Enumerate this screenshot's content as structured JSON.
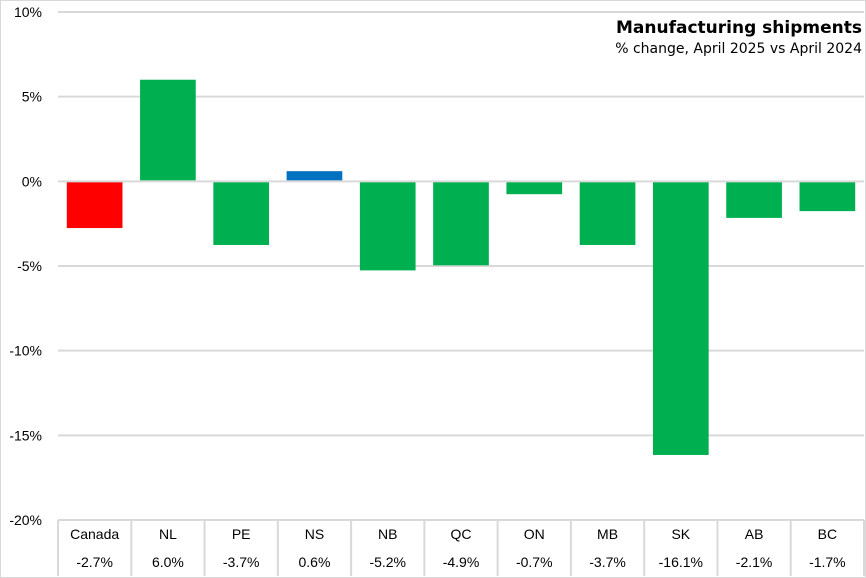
{
  "chart_data": {
    "type": "bar",
    "title": "Manufacturing shipments",
    "subtitle": "% change, April 2025 vs April 2024",
    "xlabel": "",
    "ylabel": "",
    "ylim": [
      -20,
      10
    ],
    "yticks": [
      10,
      5,
      0,
      -5,
      -10,
      -15,
      -20
    ],
    "ytick_labels": [
      "10%",
      "5%",
      "0%",
      "-5%",
      "-10%",
      "-15%",
      "-20%"
    ],
    "grid": true,
    "legend": "none",
    "categories": [
      "Canada",
      "NL",
      "PE",
      "NS",
      "NB",
      "QC",
      "ON",
      "MB",
      "SK",
      "AB",
      "BC"
    ],
    "values": [
      -2.7,
      6.0,
      -3.7,
      0.6,
      -5.2,
      -4.9,
      -0.7,
      -3.7,
      -16.1,
      -2.1,
      -1.7
    ],
    "value_labels": [
      "-2.7%",
      "6.0%",
      "-3.7%",
      "0.6%",
      "-5.2%",
      "-4.9%",
      "-0.7%",
      "-3.7%",
      "-16.1%",
      "-2.1%",
      "-1.7%"
    ],
    "bar_colors": [
      "#ff0000",
      "#00b050",
      "#00b050",
      "#0070c0",
      "#00b050",
      "#00b050",
      "#00b050",
      "#00b050",
      "#00b050",
      "#00b050",
      "#00b050"
    ],
    "data_table": true
  },
  "colors": {
    "canada": "#ff0000",
    "province": "#00b050",
    "highlight": "#0070c0",
    "grid": "#d9d9d9"
  }
}
